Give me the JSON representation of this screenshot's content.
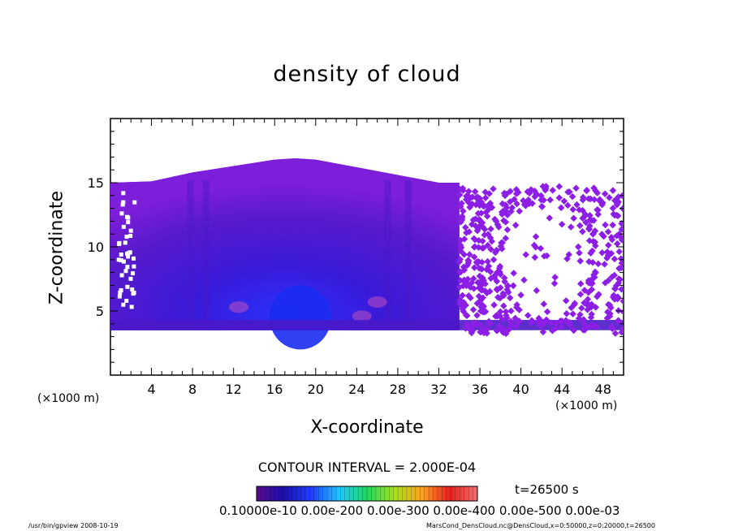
{
  "chart_data": {
    "type": "heatmap",
    "title": "density of cloud",
    "xlabel": "X-coordinate",
    "ylabel": "Z-coordinate",
    "x_unit": "(×1000 m)",
    "y_unit": "(×1000 m)",
    "xlim": [
      0,
      50
    ],
    "ylim": [
      0,
      20
    ],
    "xticks": [
      4,
      8,
      12,
      16,
      20,
      24,
      28,
      32,
      36,
      40,
      44,
      48
    ],
    "yticks": [
      5,
      10,
      15
    ],
    "cloud_base_z": 3.5,
    "cloud_top_profile": {
      "x": [
        0,
        4,
        8,
        12,
        16,
        18,
        20,
        24,
        28,
        32,
        34,
        36,
        40,
        44,
        48,
        50
      ],
      "z": [
        15.0,
        15.1,
        15.8,
        16.3,
        16.8,
        16.9,
        16.8,
        16.2,
        15.6,
        15.0,
        15.0,
        15.0,
        15.0,
        15.0,
        15.0,
        15.0
      ]
    },
    "density_core": {
      "x": 18.5,
      "z": 4.5
    },
    "broken_region_x": [
      34,
      50
    ],
    "contour_interval": "CONTOUR INTERVAL = 2.000E-04",
    "colorbar": {
      "label_text": "0.10000e-10 0.00e-200 0.00e-300 0.00e-400 0.00e-500 0.00e-03",
      "color_stops": [
        "#5a0a8a",
        "#1a10b0",
        "#2040ff",
        "#20c8ff",
        "#20d860",
        "#a8e020",
        "#ffa020",
        "#e82020",
        "#f07070"
      ]
    },
    "time_label": "t=26500 s"
  },
  "footer": {
    "left": "/usr/bin/gpview   2008-10-19",
    "right": "MarsCond_DensCloud.nc@DensCloud,x=0:50000,z=0:20000,t=26500"
  },
  "colors": {
    "cloud_edge": "#8c1ee6",
    "cloud_mid": "#4a18c8",
    "cloud_core": "#1a2cf0",
    "cloud_hot": "#c050c0"
  }
}
